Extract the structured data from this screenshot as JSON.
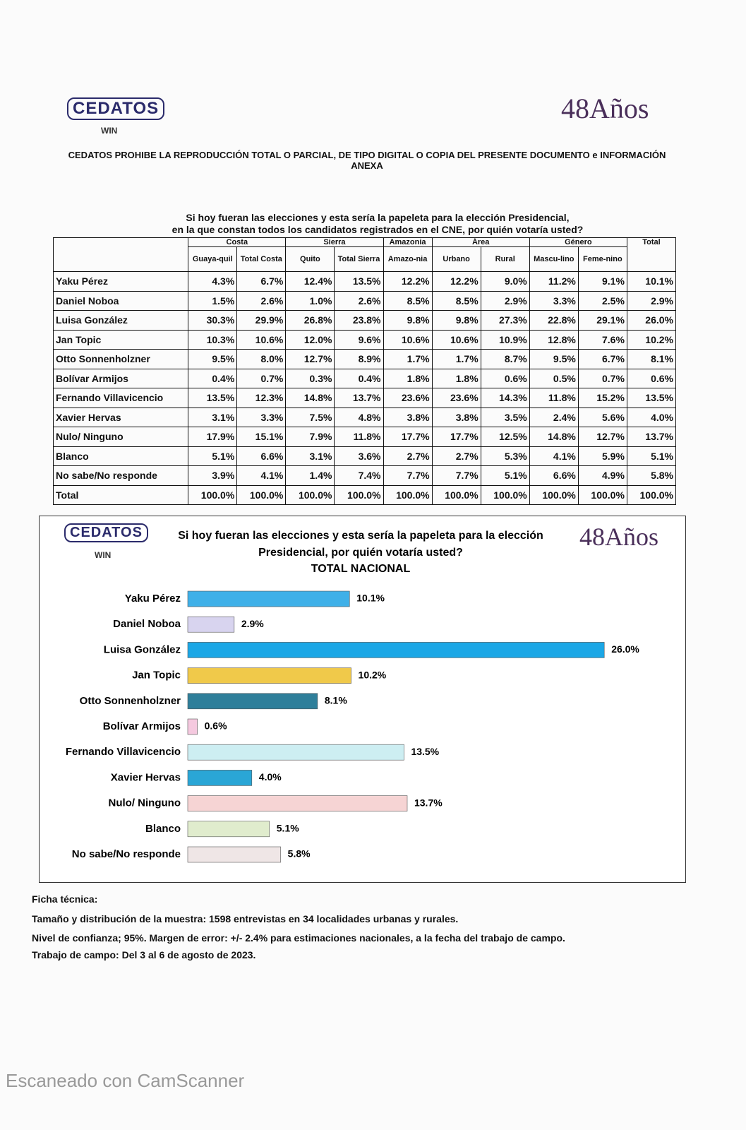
{
  "header": {
    "logo": "CEDATOS",
    "logo_sub": "WIN",
    "anniversary": "48Años",
    "notice": "CEDATOS PROHIBE LA REPRODUCCIÓN TOTAL O PARCIAL, DE TIPO DIGITAL O COPIA DEL PRESENTE DOCUMENTO e INFORMACIÓN ANEXA"
  },
  "table": {
    "title": [
      "Si hoy fueran las elecciones y esta sería la papeleta para la elección Presidencial,",
      "en la que constan todos los candidatos registrados en el CNE, por quién votaría usted?"
    ],
    "groups": [
      {
        "label": "Costa",
        "columns": [
          "Guaya-quil",
          "Total Costa"
        ]
      },
      {
        "label": "Sierra",
        "columns": [
          "Quito",
          "Total Sierra"
        ]
      },
      {
        "label": "Amazonia",
        "columns": [
          "Amazo-nia"
        ]
      },
      {
        "label": "Área",
        "columns": [
          "Urbano",
          "Rural"
        ]
      },
      {
        "label": "Género",
        "columns": [
          "Mascu-lino",
          "Feme-nino"
        ]
      },
      {
        "label": "Total",
        "columns": []
      }
    ],
    "rows": [
      {
        "label": "Yaku Pérez",
        "cells": [
          "4.3%",
          "6.7%",
          "12.4%",
          "13.5%",
          "12.2%",
          "12.2%",
          "9.0%",
          "11.2%",
          "9.1%",
          "10.1%"
        ]
      },
      {
        "label": "Daniel Noboa",
        "cells": [
          "1.5%",
          "2.6%",
          "1.0%",
          "2.6%",
          "8.5%",
          "8.5%",
          "2.9%",
          "3.3%",
          "2.5%",
          "2.9%"
        ]
      },
      {
        "label": "Luisa González",
        "cells": [
          "30.3%",
          "29.9%",
          "26.8%",
          "23.8%",
          "9.8%",
          "9.8%",
          "27.3%",
          "22.8%",
          "29.1%",
          "26.0%"
        ]
      },
      {
        "label": "Jan Topic",
        "cells": [
          "10.3%",
          "10.6%",
          "12.0%",
          "9.6%",
          "10.6%",
          "10.6%",
          "10.9%",
          "12.8%",
          "7.6%",
          "10.2%"
        ]
      },
      {
        "label": "Otto Sonnenholzner",
        "cells": [
          "9.5%",
          "8.0%",
          "12.7%",
          "8.9%",
          "1.7%",
          "1.7%",
          "8.7%",
          "9.5%",
          "6.7%",
          "8.1%"
        ]
      },
      {
        "label": "Bolívar Armijos",
        "cells": [
          "0.4%",
          "0.7%",
          "0.3%",
          "0.4%",
          "1.8%",
          "1.8%",
          "0.6%",
          "0.5%",
          "0.7%",
          "0.6%"
        ]
      },
      {
        "label": "Fernando Villavicencio",
        "cells": [
          "13.5%",
          "12.3%",
          "14.8%",
          "13.7%",
          "23.6%",
          "23.6%",
          "14.3%",
          "11.8%",
          "15.2%",
          "13.5%"
        ]
      },
      {
        "label": "Xavier Hervas",
        "cells": [
          "3.1%",
          "3.3%",
          "7.5%",
          "4.8%",
          "3.8%",
          "3.8%",
          "3.5%",
          "2.4%",
          "5.6%",
          "4.0%"
        ]
      },
      {
        "label": "Nulo/ Ninguno",
        "cells": [
          "17.9%",
          "15.1%",
          "7.9%",
          "11.8%",
          "17.7%",
          "17.7%",
          "12.5%",
          "14.8%",
          "12.7%",
          "13.7%"
        ]
      },
      {
        "label": "Blanco",
        "cells": [
          "5.1%",
          "6.6%",
          "3.1%",
          "3.6%",
          "2.7%",
          "2.7%",
          "5.3%",
          "4.1%",
          "5.9%",
          "5.1%"
        ]
      },
      {
        "label": "No sabe/No responde",
        "cells": [
          "3.9%",
          "4.1%",
          "1.4%",
          "7.4%",
          "7.7%",
          "7.7%",
          "5.1%",
          "6.6%",
          "4.9%",
          "5.8%"
        ]
      },
      {
        "label": "Total",
        "cells": [
          "100.0%",
          "100.0%",
          "100.0%",
          "100.0%",
          "100.0%",
          "100.0%",
          "100.0%",
          "100.0%",
          "100.0%",
          "100.0%"
        ]
      }
    ]
  },
  "chart_data": {
    "type": "bar",
    "orientation": "horizontal",
    "title": [
      "Si hoy fueran las elecciones y esta sería la papeleta para la elección",
      "Presidencial, por quién votaría usted?"
    ],
    "subtitle": "TOTAL NACIONAL",
    "categories": [
      "Yaku Pérez",
      "Daniel Noboa",
      "Luisa González",
      "Jan Topic",
      "Otto Sonnenholzner",
      "Bolívar Armijos",
      "Fernando Villavicencio",
      "Xavier Hervas",
      "Nulo/ Ninguno",
      "Blanco",
      "No sabe/No responde"
    ],
    "values": [
      10.1,
      2.9,
      26.0,
      10.2,
      8.1,
      0.6,
      13.5,
      4.0,
      13.7,
      5.1,
      5.8
    ],
    "value_labels": [
      "10.1%",
      "2.9%",
      "26.0%",
      "10.2%",
      "8.1%",
      "0.6%",
      "13.5%",
      "4.0%",
      "13.7%",
      "5.1%",
      "5.8%"
    ],
    "colors": [
      "#3fb0e8",
      "#d8d4ef",
      "#1ba7e6",
      "#f0c94a",
      "#2f7f9a",
      "#f5c9df",
      "#cdeef2",
      "#2aa6d6",
      "#f6d4d4",
      "#e0eccd",
      "#efe6e6"
    ]
  },
  "footer": {
    "heading": "Ficha técnica:",
    "lines": [
      "Tamaño y distribución de la muestra:  1598 entrevistas en 34 localidades urbanas y rurales.",
      "Nivel de confianza; 95%. Margen de error: +/- 2.4% para estimaciones nacionales, a la fecha del trabajo de campo.",
      "Trabajo de campo: Del 3 al 6 de agosto de 2023."
    ]
  },
  "watermark": "Escaneado con CamScanner"
}
